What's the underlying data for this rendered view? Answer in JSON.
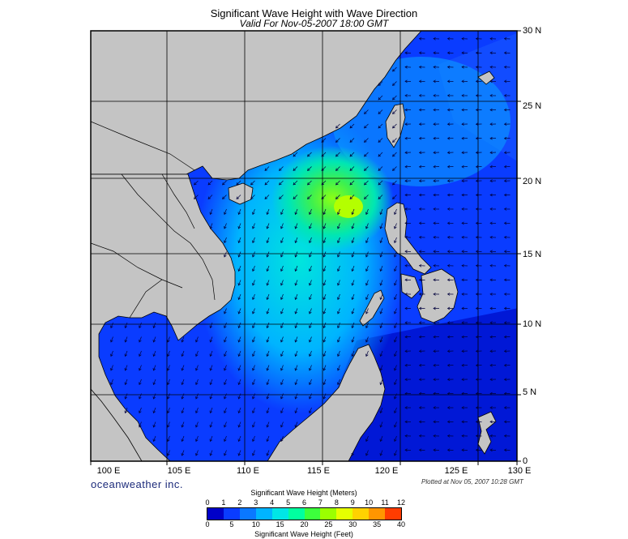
{
  "title": "Significant Wave Height with Wave Direction",
  "subtitle": "Valid For Nov-05-2007 18:00 GMT",
  "longitude_labels": [
    "100 E",
    "105 E",
    "110 E",
    "115 E",
    "120 E",
    "125 E",
    "130 E"
  ],
  "latitude_labels": [
    "30 N",
    "25 N",
    "20 N",
    "15 N",
    "10 N",
    "5 N",
    "0"
  ],
  "brand": "oceanweather inc.",
  "plotted_at": "Plotted at Nov 05, 2007 10:28 GMT",
  "colorbar": {
    "title_meters": "Significant Wave Height (Meters)",
    "title_feet": "Significant Wave Height (Feet)",
    "meter_ticks": [
      "0",
      "1",
      "2",
      "3",
      "4",
      "5",
      "6",
      "7",
      "8",
      "9",
      "10",
      "11",
      "12"
    ],
    "feet_ticks": [
      "0",
      "5",
      "10",
      "15",
      "20",
      "25",
      "30",
      "35",
      "40"
    ],
    "colors": [
      "#0000c8",
      "#0a3cff",
      "#0a78ff",
      "#00b4ff",
      "#00e6e6",
      "#00ffa0",
      "#3cff3c",
      "#9bff00",
      "#e6ff00",
      "#ffd200",
      "#ff9600",
      "#ff3c00"
    ]
  },
  "map_extent": {
    "lon_range": [
      100,
      130
    ],
    "lat_range": [
      0,
      30
    ]
  },
  "colors": {
    "land": "#c4c4c4",
    "ocean_low": "#0a3cff",
    "ocean_peak": "#3cff3c"
  }
}
